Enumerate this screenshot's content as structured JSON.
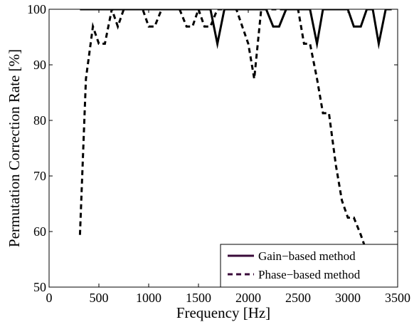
{
  "chart_data": {
    "type": "line",
    "xlabel": "Frequency [Hz]",
    "ylabel": "Permutation Correction Rate [%]",
    "xlim": [
      0,
      3500
    ],
    "ylim": [
      50,
      100
    ],
    "xticks": [
      0,
      500,
      1000,
      1500,
      2000,
      2500,
      3000,
      3500
    ],
    "yticks": [
      50,
      60,
      70,
      80,
      90,
      100
    ],
    "grid": false,
    "legend_position": "bottom-right",
    "series": [
      {
        "name": "Gain−based method",
        "style": "solid",
        "color": "#000000",
        "legend_color": "#3a0a3a",
        "x": [
          310,
          1560,
          1620,
          1690,
          1760,
          1820,
          1880,
          2060,
          2120,
          2180,
          2250,
          2310,
          2380,
          2440,
          2500,
          2560,
          2620,
          2690,
          2750,
          2810,
          2880,
          2940,
          3000,
          3060,
          3130,
          3190,
          3250,
          3310,
          3380,
          3440
        ],
        "y": [
          100,
          100,
          100,
          93.8,
          100,
          100,
          100,
          100,
          100,
          100,
          96.9,
          96.9,
          100,
          100,
          100,
          100,
          100,
          93.8,
          100,
          100,
          100,
          100,
          100,
          96.9,
          96.9,
          100,
          100,
          93.8,
          100,
          100
        ]
      },
      {
        "name": "Phase−based method",
        "style": "dashed",
        "color": "#000000",
        "legend_color": "#3a0a3a",
        "x": [
          310,
          370,
          440,
          500,
          560,
          630,
          690,
          750,
          810,
          880,
          940,
          1000,
          1060,
          1130,
          1190,
          1250,
          1310,
          1380,
          1440,
          1500,
          1560,
          1620,
          1690,
          1750,
          1810,
          1880,
          1940,
          2000,
          2060,
          2130,
          2190,
          2250,
          2310,
          2380,
          2440,
          2500,
          2560,
          2620,
          2690,
          2750,
          2810,
          2880,
          2940,
          3000,
          3060,
          3130,
          3190,
          3250,
          3310
        ],
        "y": [
          59.4,
          87.5,
          96.9,
          93.8,
          93.8,
          100,
          96.9,
          100,
          100,
          100,
          100,
          96.9,
          96.9,
          100,
          100,
          100,
          100,
          96.9,
          96.9,
          100,
          96.9,
          96.9,
          100,
          100,
          100,
          100,
          96.9,
          93.8,
          87.5,
          100,
          100,
          100,
          100,
          100,
          100,
          100,
          93.8,
          93.8,
          87.5,
          81.3,
          81.3,
          71.9,
          65.6,
          62.5,
          62.5,
          59.4,
          56.3,
          53.1,
          50
        ]
      }
    ]
  }
}
